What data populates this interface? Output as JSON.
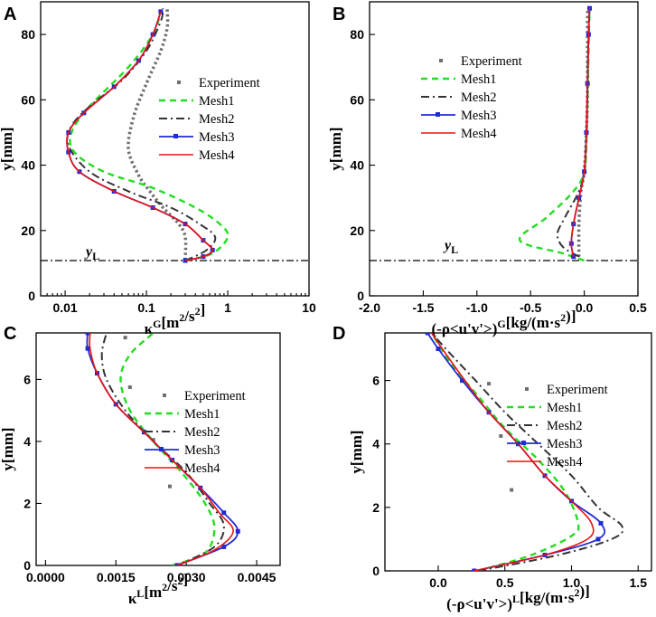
{
  "colors": {
    "experiment": "#6e6e6e",
    "mesh1": "#22dd22",
    "mesh2": "#333333",
    "mesh3": "#1f2bd6",
    "mesh4": "#ee1111"
  },
  "chart_data": [
    {
      "type": "line",
      "panel": "A",
      "xscale": "log",
      "xlim": [
        0.005,
        10
      ],
      "ylim": [
        0,
        90
      ],
      "xticks": [
        0.01,
        0.1,
        1,
        10
      ],
      "xtick_labels": [
        "0.01",
        "0.1",
        "1",
        "10"
      ],
      "yticks": [
        0,
        20,
        40,
        60,
        80
      ],
      "ytick_labels": [
        "0",
        "20",
        "40",
        "60",
        "80"
      ],
      "xlabel": "κG[m2/s2]",
      "ylabel": "y[mm]",
      "ref_line": {
        "y": 10.8,
        "label": "yL"
      },
      "legend": {
        "position": "center-right",
        "items": [
          "Experiment",
          "Mesh1",
          "Mesh2",
          "Mesh3",
          "Mesh4"
        ]
      },
      "series": [
        {
          "name": "Experiment",
          "style": "dotted",
          "points": [
            [
              0.3,
              11
            ],
            [
              0.3,
              18
            ],
            [
              0.25,
              22
            ],
            [
              0.16,
              27
            ],
            [
              0.11,
              32
            ],
            [
              0.08,
              37
            ],
            [
              0.06,
              45
            ],
            [
              0.07,
              55
            ],
            [
              0.1,
              65
            ],
            [
              0.15,
              75
            ],
            [
              0.18,
              82
            ],
            [
              0.18,
              88
            ]
          ]
        },
        {
          "name": "Mesh1",
          "style": "dashed",
          "points": [
            [
              0.3,
              10.8
            ],
            [
              0.65,
              13
            ],
            [
              1.0,
              18
            ],
            [
              0.8,
              22
            ],
            [
              0.4,
              27
            ],
            [
              0.12,
              33
            ],
            [
              0.03,
              38
            ],
            [
              0.013,
              44
            ],
            [
              0.012,
              50
            ],
            [
              0.02,
              58
            ],
            [
              0.06,
              70
            ],
            [
              0.12,
              80
            ],
            [
              0.15,
              87
            ]
          ]
        },
        {
          "name": "Mesh2",
          "style": "dashdot",
          "points": [
            [
              0.3,
              10.8
            ],
            [
              0.55,
              14
            ],
            [
              0.7,
              18
            ],
            [
              0.45,
              22
            ],
            [
              0.2,
              27
            ],
            [
              0.06,
              32
            ],
            [
              0.02,
              38
            ],
            [
              0.011,
              46
            ],
            [
              0.012,
              52
            ],
            [
              0.02,
              58
            ],
            [
              0.05,
              66
            ],
            [
              0.1,
              75
            ],
            [
              0.15,
              84
            ],
            [
              0.16,
              88
            ]
          ]
        },
        {
          "name": "Mesh3",
          "style": "solid-marker",
          "points": [
            [
              0.3,
              10.8
            ],
            [
              0.5,
              12
            ],
            [
              0.65,
              14
            ],
            [
              0.5,
              17
            ],
            [
              0.3,
              22
            ],
            [
              0.12,
              27
            ],
            [
              0.04,
              32
            ],
            [
              0.015,
              38
            ],
            [
              0.011,
              44
            ],
            [
              0.011,
              50
            ],
            [
              0.017,
              56
            ],
            [
              0.04,
              64
            ],
            [
              0.08,
              72
            ],
            [
              0.12,
              80
            ],
            [
              0.15,
              87
            ]
          ]
        },
        {
          "name": "Mesh4",
          "style": "solid",
          "points": [
            [
              0.3,
              10.8
            ],
            [
              0.5,
              12
            ],
            [
              0.65,
              14
            ],
            [
              0.5,
              17
            ],
            [
              0.3,
              22
            ],
            [
              0.12,
              27
            ],
            [
              0.04,
              32
            ],
            [
              0.015,
              38
            ],
            [
              0.011,
              44
            ],
            [
              0.011,
              50
            ],
            [
              0.017,
              56
            ],
            [
              0.04,
              64
            ],
            [
              0.08,
              72
            ],
            [
              0.12,
              80
            ],
            [
              0.15,
              87
            ]
          ]
        }
      ]
    },
    {
      "type": "line",
      "panel": "B",
      "xlim": [
        -2.0,
        0.5
      ],
      "ylim": [
        0,
        90
      ],
      "xticks": [
        -2.0,
        -1.5,
        -1.0,
        -0.5,
        0.0,
        0.5
      ],
      "xtick_labels": [
        "-2.0",
        "-1.5",
        "-1.0",
        "-0.5",
        "0.0",
        "0.5"
      ],
      "yticks": [
        0,
        20,
        40,
        60,
        80
      ],
      "ytick_labels": [
        "0",
        "20",
        "40",
        "60",
        "80"
      ],
      "xlabel": "(-ρ<u'v'>)G[kg/(m·s2)]",
      "ylabel": "y[mm]",
      "ref_line": {
        "y": 10.8,
        "label": "yL"
      },
      "legend": {
        "position": "top-left",
        "items": [
          "Experiment",
          "Mesh1",
          "Mesh2",
          "Mesh3",
          "Mesh4"
        ]
      },
      "series": [
        {
          "name": "Experiment",
          "style": "dotted",
          "points": [
            [
              -0.05,
              12
            ],
            [
              -0.05,
              22
            ],
            [
              -0.03,
              32
            ],
            [
              0.0,
              38
            ],
            [
              0.02,
              50
            ],
            [
              0.03,
              62
            ],
            [
              0.03,
              75
            ],
            [
              0.03,
              88
            ]
          ]
        },
        {
          "name": "Mesh1",
          "style": "dashed",
          "points": [
            [
              0.0,
              10.8
            ],
            [
              -0.2,
              13
            ],
            [
              -0.6,
              17
            ],
            [
              -0.35,
              24
            ],
            [
              -0.1,
              32
            ],
            [
              0.0,
              38
            ],
            [
              0.02,
              48
            ],
            [
              0.03,
              60
            ],
            [
              0.04,
              75
            ],
            [
              0.05,
              88
            ]
          ]
        },
        {
          "name": "Mesh2",
          "style": "dashdot",
          "points": [
            [
              -0.05,
              12
            ],
            [
              -0.2,
              15
            ],
            [
              -0.25,
              19
            ],
            [
              -0.18,
              24
            ],
            [
              -0.05,
              32
            ],
            [
              0.0,
              38
            ],
            [
              0.02,
              50
            ],
            [
              0.03,
              65
            ],
            [
              0.04,
              80
            ],
            [
              0.05,
              88
            ]
          ]
        },
        {
          "name": "Mesh3",
          "style": "solid-marker",
          "points": [
            [
              -0.1,
              12
            ],
            [
              -0.12,
              16
            ],
            [
              -0.1,
              22
            ],
            [
              -0.05,
              30
            ],
            [
              0.0,
              38
            ],
            [
              0.02,
              50
            ],
            [
              0.03,
              65
            ],
            [
              0.04,
              80
            ],
            [
              0.05,
              88
            ]
          ]
        },
        {
          "name": "Mesh4",
          "style": "solid",
          "points": [
            [
              -0.1,
              12
            ],
            [
              -0.12,
              16
            ],
            [
              -0.1,
              22
            ],
            [
              -0.05,
              30
            ],
            [
              0.0,
              38
            ],
            [
              0.02,
              50
            ],
            [
              0.03,
              65
            ],
            [
              0.04,
              80
            ],
            [
              0.05,
              88
            ]
          ]
        }
      ]
    },
    {
      "type": "line",
      "panel": "C",
      "xlim": [
        -0.0002,
        0.005
      ],
      "ylim": [
        0,
        7.5
      ],
      "xticks": [
        0.0,
        0.0015,
        0.003,
        0.0045
      ],
      "xtick_labels": [
        "0.0000",
        "0.0015",
        "0.0030",
        "0.0045"
      ],
      "yticks": [
        0,
        2,
        4,
        6
      ],
      "ytick_labels": [
        "0",
        "2",
        "4",
        "6"
      ],
      "xlabel": "κL[m2/s2]",
      "ylabel": "y[mm]",
      "legend": {
        "position": "center-right",
        "items": [
          "Experiment",
          "Mesh1",
          "Mesh2",
          "Mesh3",
          "Mesh4"
        ]
      },
      "series": [
        {
          "name": "Experiment",
          "style": "sparse-markers",
          "points": [
            [
              0.00265,
              2.55
            ],
            [
              0.0023,
              4.05
            ],
            [
              0.0018,
              5.75
            ],
            [
              0.0017,
              7.35
            ]
          ]
        },
        {
          "name": "Mesh1",
          "style": "dashed",
          "points": [
            [
              0.0027,
              0.0
            ],
            [
              0.0034,
              0.4
            ],
            [
              0.0036,
              1.2
            ],
            [
              0.0034,
              2.0
            ],
            [
              0.0029,
              3.0
            ],
            [
              0.0023,
              4.0
            ],
            [
              0.0018,
              5.0
            ],
            [
              0.0016,
              6.0
            ],
            [
              0.0018,
              6.8
            ],
            [
              0.0023,
              7.5
            ]
          ]
        },
        {
          "name": "Mesh2",
          "style": "dashdot",
          "points": [
            [
              0.0028,
              0.0
            ],
            [
              0.0036,
              0.6
            ],
            [
              0.0038,
              1.3
            ],
            [
              0.0035,
              2.0
            ],
            [
              0.003,
              3.0
            ],
            [
              0.0023,
              4.0
            ],
            [
              0.0017,
              5.0
            ],
            [
              0.0013,
              6.0
            ],
            [
              0.0012,
              6.8
            ],
            [
              0.0013,
              7.5
            ]
          ]
        },
        {
          "name": "Mesh3",
          "style": "solid-marker",
          "points": [
            [
              0.0028,
              0.0
            ],
            [
              0.0038,
              0.6
            ],
            [
              0.0041,
              1.1
            ],
            [
              0.0038,
              1.7
            ],
            [
              0.0033,
              2.5
            ],
            [
              0.0027,
              3.4
            ],
            [
              0.0021,
              4.3
            ],
            [
              0.0015,
              5.2
            ],
            [
              0.0011,
              6.2
            ],
            [
              0.0009,
              7.0
            ],
            [
              0.0009,
              7.5
            ]
          ]
        },
        {
          "name": "Mesh4",
          "style": "solid",
          "points": [
            [
              0.0028,
              0.0
            ],
            [
              0.0036,
              0.5
            ],
            [
              0.004,
              1.1
            ],
            [
              0.0037,
              1.7
            ],
            [
              0.0033,
              2.5
            ],
            [
              0.0027,
              3.4
            ],
            [
              0.0021,
              4.3
            ],
            [
              0.0015,
              5.2
            ],
            [
              0.0011,
              6.2
            ],
            [
              0.00095,
              7.0
            ],
            [
              0.00095,
              7.5
            ]
          ]
        }
      ]
    },
    {
      "type": "line",
      "panel": "D",
      "xlim": [
        -0.4,
        1.6
      ],
      "ylim": [
        0,
        7.5
      ],
      "xticks": [
        0.0,
        0.5,
        1.0,
        1.5
      ],
      "xtick_labels": [
        "0.0",
        "0.5",
        "1.0",
        "1.5"
      ],
      "yticks": [
        0,
        2,
        4,
        6
      ],
      "ytick_labels": [
        "0",
        "2",
        "4",
        "6"
      ],
      "xlabel": "(-ρ<u'v'>)L[kg/(m·s2)]",
      "ylabel": "y[mm]",
      "legend": {
        "position": "center-right",
        "items": [
          "Experiment",
          "Mesh1",
          "Mesh2",
          "Mesh3",
          "Mesh4"
        ]
      },
      "series": [
        {
          "name": "Experiment",
          "style": "sparse-markers",
          "points": [
            [
              0.55,
              2.55
            ],
            [
              0.47,
              4.25
            ],
            [
              0.38,
              5.9
            ]
          ]
        },
        {
          "name": "Mesh1",
          "style": "dashed",
          "points": [
            [
              0.3,
              0.0
            ],
            [
              0.7,
              0.5
            ],
            [
              1.0,
              1.1
            ],
            [
              1.05,
              1.5
            ],
            [
              0.95,
              2.5
            ],
            [
              0.75,
              3.5
            ],
            [
              0.5,
              4.5
            ],
            [
              0.3,
              5.5
            ],
            [
              0.1,
              6.5
            ],
            [
              -0.05,
              7.5
            ]
          ]
        },
        {
          "name": "Mesh2",
          "style": "dashdot",
          "points": [
            [
              0.3,
              0.0
            ],
            [
              0.9,
              0.5
            ],
            [
              1.3,
              1.0
            ],
            [
              1.38,
              1.4
            ],
            [
              1.2,
              2.0
            ],
            [
              1.0,
              3.0
            ],
            [
              0.75,
              4.0
            ],
            [
              0.5,
              5.0
            ],
            [
              0.28,
              6.0
            ],
            [
              0.1,
              6.8
            ],
            [
              -0.05,
              7.5
            ]
          ]
        },
        {
          "name": "Mesh3",
          "style": "solid-marker",
          "points": [
            [
              0.27,
              0.0
            ],
            [
              0.8,
              0.5
            ],
            [
              1.2,
              1.0
            ],
            [
              1.22,
              1.5
            ],
            [
              1.0,
              2.2
            ],
            [
              0.8,
              3.0
            ],
            [
              0.6,
              4.0
            ],
            [
              0.38,
              5.0
            ],
            [
              0.18,
              6.0
            ],
            [
              0.0,
              7.0
            ],
            [
              -0.08,
              7.5
            ]
          ]
        },
        {
          "name": "Mesh4",
          "style": "solid",
          "points": [
            [
              0.27,
              0.0
            ],
            [
              0.8,
              0.5
            ],
            [
              1.12,
              1.0
            ],
            [
              1.15,
              1.5
            ],
            [
              1.0,
              2.2
            ],
            [
              0.8,
              3.0
            ],
            [
              0.6,
              4.0
            ],
            [
              0.38,
              5.0
            ],
            [
              0.2,
              6.0
            ],
            [
              0.03,
              7.0
            ],
            [
              -0.05,
              7.5
            ]
          ]
        }
      ]
    }
  ]
}
